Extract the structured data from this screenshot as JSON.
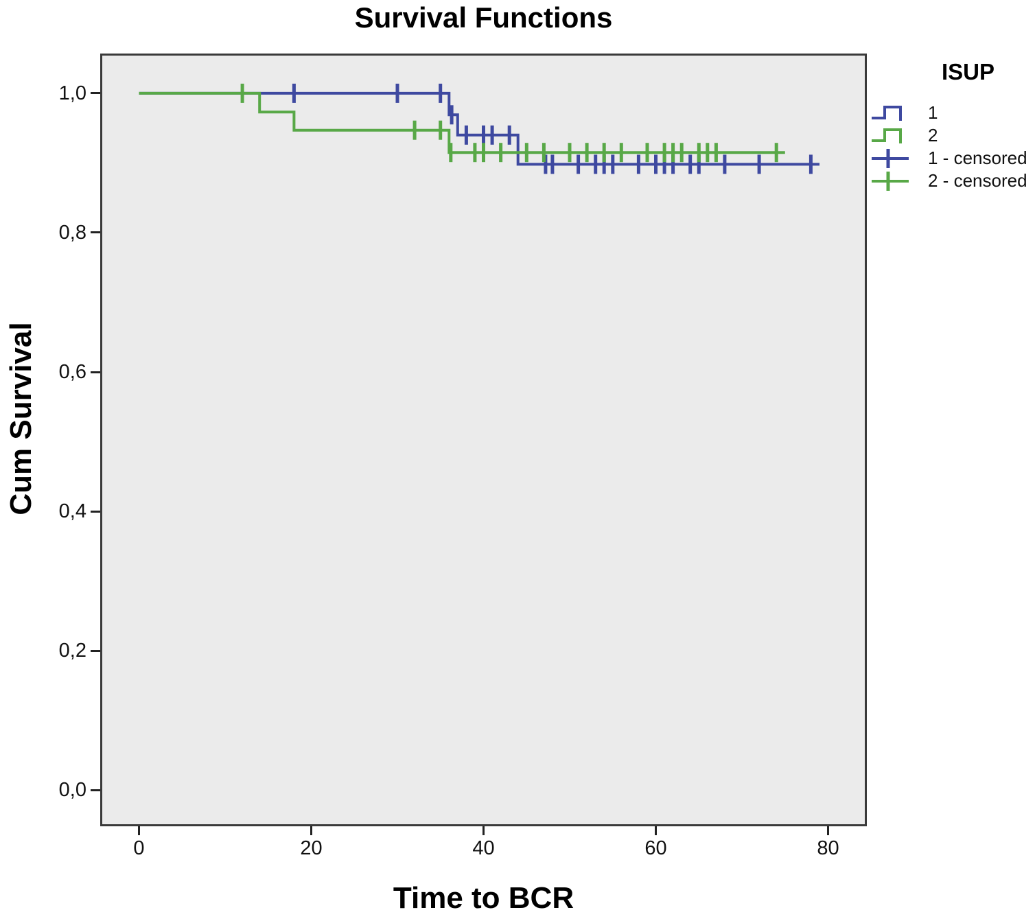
{
  "figure": {
    "title": "Survival Functions"
  },
  "legend": {
    "title": "ISUP",
    "entries": [
      {
        "label": "1",
        "symbol": "step-line",
        "color": "#3E49A0"
      },
      {
        "label": "2",
        "symbol": "step-line",
        "color": "#58A847"
      },
      {
        "label": "1 - censored",
        "symbol": "plus",
        "color": "#3E49A0"
      },
      {
        "label": "2 - censored",
        "symbol": "plus",
        "color": "#58A847"
      }
    ]
  },
  "chart_data": {
    "type": "line",
    "subtype": "kaplan_meier_step",
    "title": "Survival Functions",
    "xlabel": "Time to BCR",
    "ylabel": "Cum Survival",
    "xlim": [
      -4.5,
      84.5
    ],
    "ylim": [
      -0.052,
      1.057
    ],
    "grid": false,
    "plot_background": "#EBEBEB",
    "frame_color": "#3A3A3A",
    "tick_color": "#222222",
    "legend_position": "outside-top-right",
    "x_ticks": [
      {
        "t": 0,
        "label": "0"
      },
      {
        "t": 20,
        "label": "20"
      },
      {
        "t": 40,
        "label": "40"
      },
      {
        "t": 60,
        "label": "60"
      },
      {
        "t": 80,
        "label": "80"
      }
    ],
    "y_ticks": [
      {
        "s": 1.0,
        "label": "1,0"
      },
      {
        "s": 0.8,
        "label": "0,8"
      },
      {
        "s": 0.6,
        "label": "0,6"
      },
      {
        "s": 0.4,
        "label": "0,4"
      },
      {
        "s": 0.2,
        "label": "0,2"
      },
      {
        "s": 0.0,
        "label": "0,0"
      }
    ],
    "series": [
      {
        "name": "1",
        "color": "#3E49A0",
        "steps": [
          [
            0,
            1.0
          ],
          [
            36,
            1.0
          ],
          [
            36,
            0.969
          ],
          [
            37,
            0.969
          ],
          [
            37,
            0.94
          ],
          [
            44,
            0.94
          ],
          [
            44,
            0.898
          ],
          [
            79,
            0.898
          ]
        ],
        "censored": [
          [
            18,
            1.0
          ],
          [
            30,
            1.0
          ],
          [
            35,
            1.0
          ],
          [
            36.3,
            0.969
          ],
          [
            38,
            0.94
          ],
          [
            40,
            0.94
          ],
          [
            41,
            0.94
          ],
          [
            43,
            0.94
          ],
          [
            47.2,
            0.898
          ],
          [
            48,
            0.898
          ],
          [
            51,
            0.898
          ],
          [
            53,
            0.898
          ],
          [
            54,
            0.898
          ],
          [
            55,
            0.898
          ],
          [
            58,
            0.898
          ],
          [
            60,
            0.898
          ],
          [
            61,
            0.898
          ],
          [
            62,
            0.898
          ],
          [
            64,
            0.898
          ],
          [
            65,
            0.898
          ],
          [
            68,
            0.898
          ],
          [
            72,
            0.898
          ],
          [
            78,
            0.898
          ]
        ]
      },
      {
        "name": "2",
        "color": "#58A847",
        "steps": [
          [
            0,
            1.0
          ],
          [
            14,
            1.0
          ],
          [
            14,
            0.973
          ],
          [
            18,
            0.973
          ],
          [
            18,
            0.947
          ],
          [
            36,
            0.947
          ],
          [
            36,
            0.915
          ],
          [
            75,
            0.915
          ]
        ],
        "censored": [
          [
            12,
            1.0
          ],
          [
            32,
            0.947
          ],
          [
            35,
            0.947
          ],
          [
            36.2,
            0.915
          ],
          [
            39,
            0.915
          ],
          [
            40,
            0.915
          ],
          [
            42,
            0.915
          ],
          [
            45,
            0.915
          ],
          [
            47,
            0.915
          ],
          [
            50,
            0.915
          ],
          [
            52,
            0.915
          ],
          [
            54,
            0.915
          ],
          [
            56,
            0.915
          ],
          [
            59,
            0.915
          ],
          [
            61,
            0.915
          ],
          [
            62,
            0.915
          ],
          [
            63,
            0.915
          ],
          [
            65,
            0.915
          ],
          [
            66,
            0.915
          ],
          [
            67,
            0.915
          ],
          [
            74,
            0.915
          ]
        ]
      }
    ]
  }
}
